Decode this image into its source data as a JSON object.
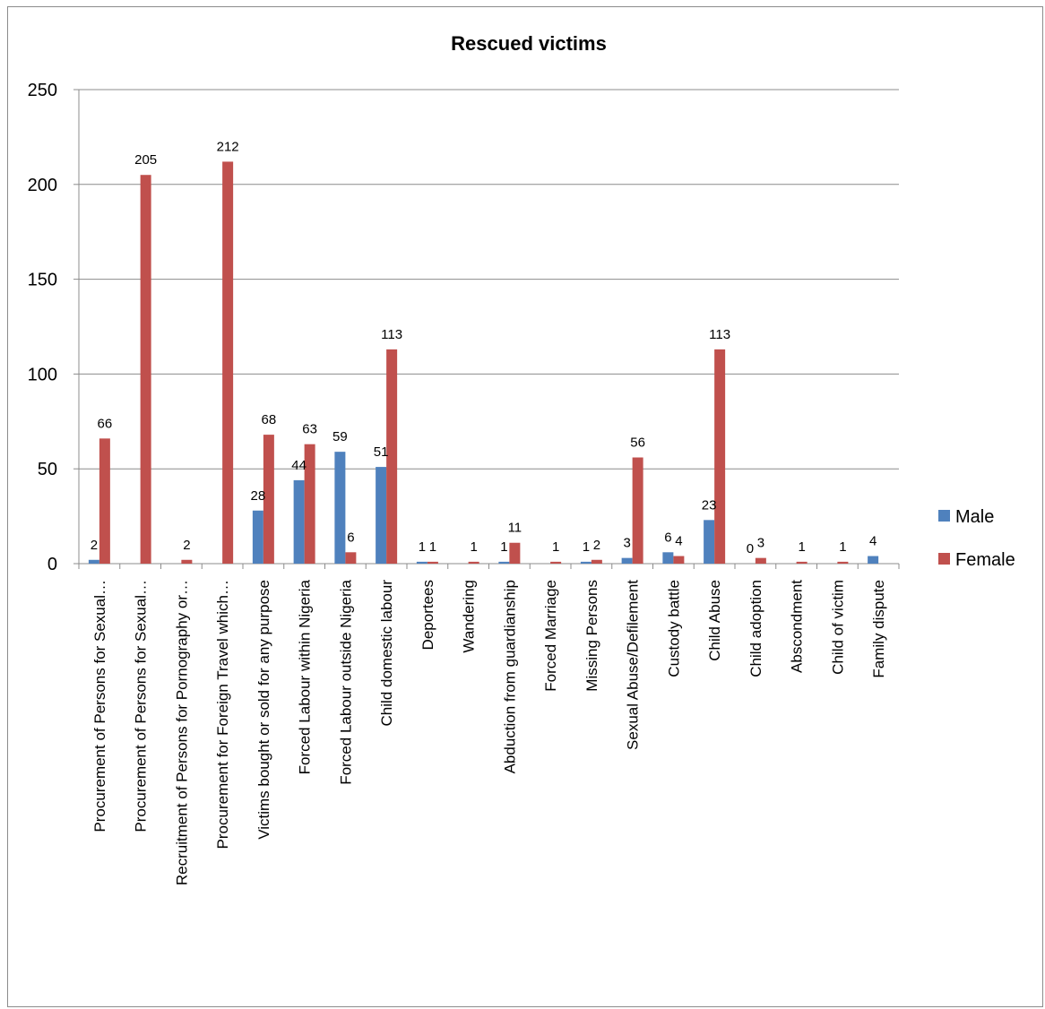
{
  "chart_data": {
    "type": "bar",
    "title": "Rescued victims",
    "xlabel": "",
    "ylabel": "",
    "ylim": [
      0,
      250
    ],
    "yticks": [
      0,
      50,
      100,
      150,
      200,
      250
    ],
    "grid": true,
    "legend_position": "right",
    "categories": [
      "Procurement of Persons for Sexual…",
      "Procurement of Persons for Sexual…",
      "Recruitment of Persons for Pornography or…",
      "Procurement for Foreign Travel which…",
      "Victims bought or sold for any purpose",
      "Forced Labour within Nigeria",
      "Forced Labour outside Nigeria",
      "Child domestic labour",
      "Deportees",
      "Wandering",
      "Abduction from guardianship",
      "Forced Marriage",
      "Missing Persons",
      "Sexual Abuse/Defilement",
      "Custody battle",
      "Child Abuse",
      "Child adoption",
      "Abscondment",
      "Child of victim",
      "Family dispute"
    ],
    "series": [
      {
        "name": "Male",
        "color": "#4f81bd",
        "values": [
          2,
          null,
          null,
          null,
          28,
          44,
          59,
          51,
          1,
          null,
          1,
          null,
          1,
          3,
          6,
          23,
          0,
          null,
          null,
          4
        ]
      },
      {
        "name": "Female",
        "color": "#c0504d",
        "values": [
          66,
          205,
          2,
          212,
          68,
          63,
          6,
          113,
          1,
          1,
          11,
          1,
          2,
          56,
          4,
          113,
          3,
          1,
          1,
          null
        ]
      }
    ]
  }
}
